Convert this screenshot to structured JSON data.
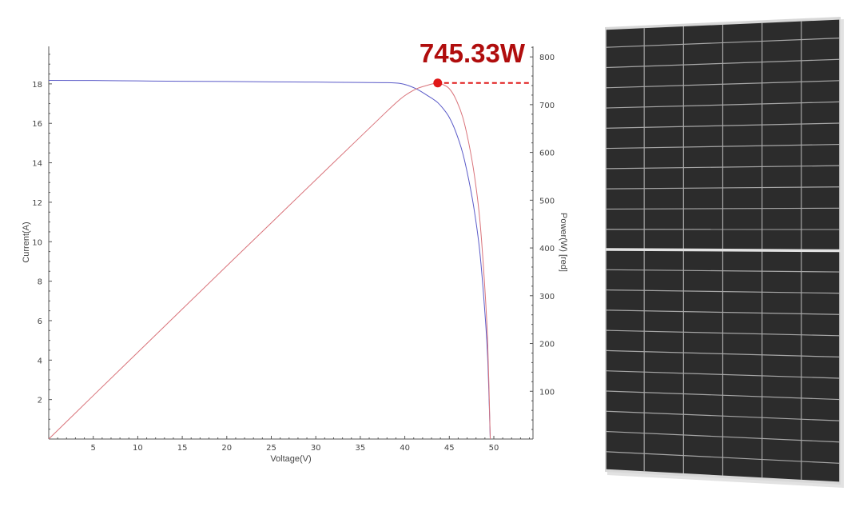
{
  "chart_data": {
    "type": "line",
    "xlabel": "Voltage(V)",
    "ylabel": "Current(A)",
    "y2label": "Power(W) [red]",
    "xlim": [
      0,
      54.4
    ],
    "ylim": [
      0,
      19.9
    ],
    "y2lim": [
      0,
      822
    ],
    "x_ticks": [
      5,
      10,
      15,
      20,
      25,
      30,
      35,
      40,
      45,
      50
    ],
    "y_ticks": [
      2,
      4,
      6,
      8,
      10,
      12,
      14,
      16,
      18
    ],
    "y2_ticks": [
      100,
      200,
      300,
      400,
      500,
      600,
      700,
      800
    ],
    "grid": false,
    "series": [
      {
        "axis": "left",
        "color": "#5a5ac8",
        "x": [
          0,
          5,
          10,
          15,
          20,
          25,
          30,
          35,
          38,
          39.5,
          40.5,
          41.5,
          42.5,
          43.2,
          43.7,
          44.3,
          45,
          45.7,
          46.5,
          47.2,
          47.8,
          48.4,
          48.9,
          49.3,
          49.6
        ],
        "values": [
          18.18,
          18.17,
          18.15,
          18.13,
          18.12,
          18.1,
          18.09,
          18.07,
          18.06,
          18.02,
          17.9,
          17.7,
          17.42,
          17.22,
          17.05,
          16.75,
          16.3,
          15.6,
          14.5,
          13.1,
          11.6,
          9.6,
          7.0,
          4.2,
          0
        ]
      },
      {
        "axis": "right",
        "color": "#d9737a",
        "x": [
          0,
          5,
          10,
          15,
          20,
          25,
          30,
          35,
          38,
          39.5,
          40.5,
          41.5,
          42.5,
          43.2,
          43.7,
          44.3,
          45,
          45.7,
          46.5,
          47.2,
          47.8,
          48.4,
          48.9,
          49.3,
          49.6
        ],
        "values": [
          0,
          90.9,
          181.5,
          272,
          362.4,
          452.5,
          542.7,
          632.5,
          686.3,
          711.8,
          725,
          734.6,
          740.4,
          743.9,
          745.1,
          742,
          733.5,
          712.9,
          674.3,
          618.3,
          554.5,
          464.6,
          342.3,
          207.1,
          0
        ]
      }
    ],
    "annotation": {
      "label": "745.33W",
      "x": 43.7,
      "power": 745.33,
      "color": "#e01818"
    }
  },
  "photo": {
    "subject": "solar-panel",
    "frame_color": "#d8d8d8",
    "cell_color": "#2c2c2c",
    "columns": 6,
    "rows_per_half": 11
  }
}
